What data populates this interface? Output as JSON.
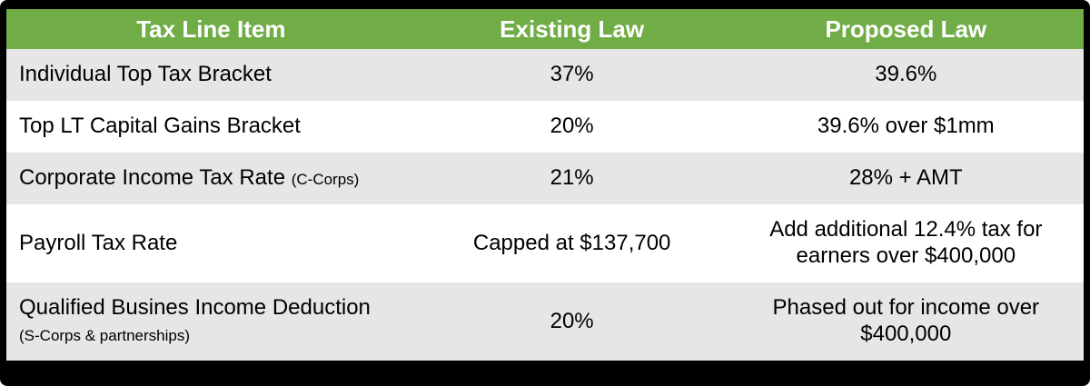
{
  "colors": {
    "frame": "#000000",
    "header_bg": "#70AD47",
    "header_text": "#FFFFFF",
    "alt_row_bg": "#E7E6E6",
    "row_bg": "#FFFFFF",
    "body_text": "#000000"
  },
  "table": {
    "headers": [
      "Tax Line Item",
      "Existing Law",
      "Proposed Law"
    ],
    "rows": [
      {
        "item": "Individual Top Tax Bracket",
        "note": "",
        "existing": "37%",
        "proposed": "39.6%"
      },
      {
        "item": "Top LT Capital Gains Bracket",
        "note": "",
        "existing": "20%",
        "proposed": "39.6% over $1mm"
      },
      {
        "item": "Corporate Income Tax Rate",
        "note": "(C-Corps)",
        "existing": "21%",
        "proposed": "28% + AMT"
      },
      {
        "item": "Payroll Tax Rate",
        "note": "",
        "existing": "Capped at $137,700",
        "proposed": "Add additional 12.4% tax for earners over $400,000"
      },
      {
        "item": "Qualified Busines Income Deduction",
        "note": "(S-Corps & partnerships)",
        "existing": "20%",
        "proposed": "Phased out for income over $400,000"
      }
    ]
  },
  "chart_data": {
    "type": "table",
    "columns": [
      "Tax Line Item",
      "Existing Law",
      "Proposed Law"
    ],
    "rows": [
      [
        "Individual Top Tax Bracket",
        "37%",
        "39.6%"
      ],
      [
        "Top LT Capital Gains Bracket",
        "20%",
        "39.6% over $1mm"
      ],
      [
        "Corporate Income Tax Rate (C-Corps)",
        "21%",
        "28% + AMT"
      ],
      [
        "Payroll Tax Rate",
        "Capped at $137,700",
        "Add additional 12.4% tax for earners over $400,000"
      ],
      [
        "Qualified Busines Income Deduction (S-Corps & partnerships)",
        "20%",
        "Phased out for income over $400,000"
      ]
    ]
  }
}
